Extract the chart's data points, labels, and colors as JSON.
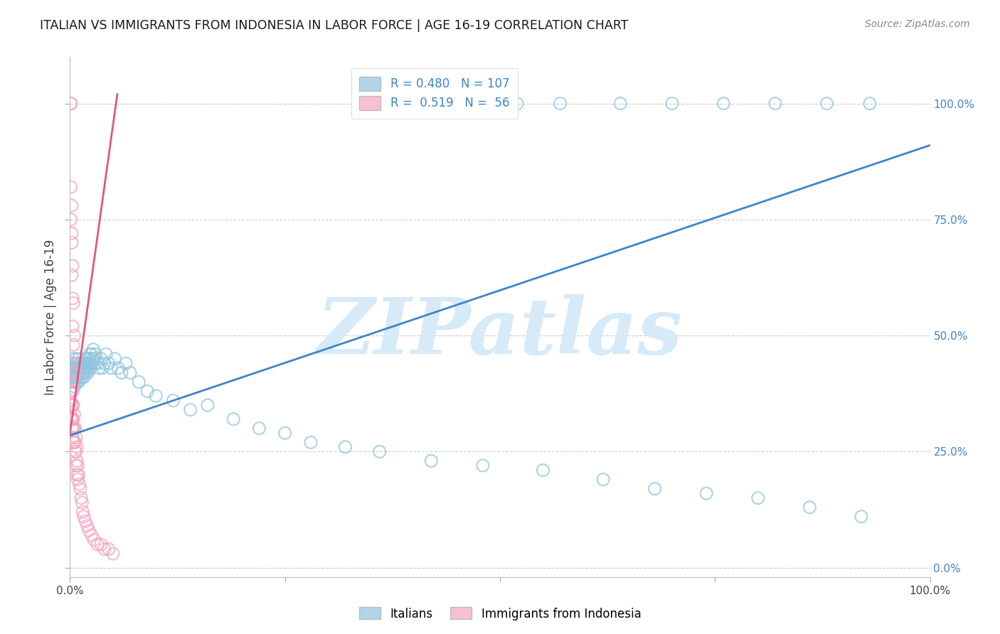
{
  "title": "ITALIAN VS IMMIGRANTS FROM INDONESIA IN LABOR FORCE | AGE 16-19 CORRELATION CHART",
  "source": "Source: ZipAtlas.com",
  "ylabel": "In Labor Force | Age 16-19",
  "watermark": "ZIPatlas",
  "blue_color": "#92c5de",
  "pink_color": "#f4a6c0",
  "blue_line_color": "#3d85c8",
  "pink_line_color": "#e05880",
  "title_color": "#1a1a1a",
  "axis_label_color": "#444444",
  "right_axis_color": "#3d85c8",
  "grid_color": "#cccccc",
  "watermark_color": "#d6eaf8",
  "blue_points_x": [
    0.002,
    0.002,
    0.003,
    0.003,
    0.004,
    0.004,
    0.004,
    0.005,
    0.005,
    0.005,
    0.006,
    0.006,
    0.006,
    0.007,
    0.007,
    0.007,
    0.008,
    0.008,
    0.008,
    0.009,
    0.009,
    0.01,
    0.01,
    0.01,
    0.01,
    0.011,
    0.011,
    0.012,
    0.012,
    0.013,
    0.013,
    0.014,
    0.014,
    0.015,
    0.015,
    0.016,
    0.016,
    0.017,
    0.017,
    0.018,
    0.018,
    0.019,
    0.019,
    0.02,
    0.02,
    0.021,
    0.021,
    0.022,
    0.022,
    0.023,
    0.023,
    0.024,
    0.025,
    0.025,
    0.026,
    0.027,
    0.028,
    0.029,
    0.03,
    0.032,
    0.034,
    0.036,
    0.038,
    0.04,
    0.042,
    0.045,
    0.048,
    0.052,
    0.056,
    0.06,
    0.065,
    0.07,
    0.08,
    0.09,
    0.1,
    0.12,
    0.14,
    0.16,
    0.19,
    0.22,
    0.25,
    0.28,
    0.32,
    0.36,
    0.42,
    0.48,
    0.55,
    0.62,
    0.68,
    0.74,
    0.8,
    0.86,
    0.92,
    0.42,
    0.48,
    0.52,
    0.57,
    0.64,
    0.7,
    0.76,
    0.82,
    0.88,
    0.93
  ],
  "blue_points_y": [
    0.43,
    0.4,
    0.45,
    0.41,
    0.44,
    0.42,
    0.4,
    0.43,
    0.41,
    0.39,
    0.44,
    0.42,
    0.4,
    0.45,
    0.43,
    0.41,
    0.44,
    0.42,
    0.4,
    0.43,
    0.41,
    0.45,
    0.43,
    0.42,
    0.4,
    0.44,
    0.42,
    0.43,
    0.41,
    0.44,
    0.42,
    0.43,
    0.41,
    0.44,
    0.42,
    0.43,
    0.41,
    0.44,
    0.42,
    0.45,
    0.43,
    0.44,
    0.42,
    0.45,
    0.43,
    0.44,
    0.42,
    0.45,
    0.43,
    0.46,
    0.44,
    0.43,
    0.46,
    0.44,
    0.45,
    0.47,
    0.45,
    0.44,
    0.46,
    0.44,
    0.43,
    0.45,
    0.43,
    0.44,
    0.46,
    0.44,
    0.43,
    0.45,
    0.43,
    0.42,
    0.44,
    0.42,
    0.4,
    0.38,
    0.37,
    0.36,
    0.34,
    0.35,
    0.32,
    0.3,
    0.29,
    0.27,
    0.26,
    0.25,
    0.23,
    0.22,
    0.21,
    0.19,
    0.17,
    0.16,
    0.15,
    0.13,
    0.11,
    1.0,
    1.0,
    1.0,
    1.0,
    1.0,
    1.0,
    1.0,
    1.0,
    1.0,
    1.0
  ],
  "pink_points_x": [
    0.001,
    0.001,
    0.001,
    0.001,
    0.001,
    0.002,
    0.002,
    0.002,
    0.002,
    0.002,
    0.003,
    0.003,
    0.003,
    0.003,
    0.003,
    0.004,
    0.004,
    0.004,
    0.004,
    0.005,
    0.005,
    0.005,
    0.006,
    0.006,
    0.006,
    0.007,
    0.007,
    0.007,
    0.008,
    0.008,
    0.008,
    0.009,
    0.009,
    0.01,
    0.011,
    0.012,
    0.013,
    0.014,
    0.015,
    0.016,
    0.018,
    0.02,
    0.022,
    0.025,
    0.028,
    0.032,
    0.036,
    0.04,
    0.045,
    0.05,
    0.001,
    0.001,
    0.002,
    0.002,
    0.003,
    0.004
  ],
  "pink_points_y": [
    0.4,
    0.38,
    0.36,
    0.34,
    0.32,
    0.4,
    0.38,
    0.35,
    0.32,
    0.3,
    0.38,
    0.35,
    0.32,
    0.3,
    0.28,
    0.35,
    0.32,
    0.3,
    0.27,
    0.33,
    0.3,
    0.27,
    0.3,
    0.27,
    0.25,
    0.28,
    0.25,
    0.22,
    0.26,
    0.23,
    0.2,
    0.22,
    0.19,
    0.2,
    0.18,
    0.17,
    0.15,
    0.14,
    0.12,
    0.11,
    0.1,
    0.09,
    0.08,
    0.07,
    0.06,
    0.05,
    0.05,
    0.04,
    0.04,
    0.03,
    1.0,
    1.0,
    0.78,
    0.72,
    0.65,
    0.57
  ],
  "pink_outliers_x": [
    0.001,
    0.001,
    0.002,
    0.002,
    0.003,
    0.003,
    0.004,
    0.005,
    0.005,
    0.006
  ],
  "pink_outliers_y": [
    0.82,
    0.75,
    0.7,
    0.63,
    0.58,
    0.52,
    0.48,
    0.44,
    0.5,
    0.42
  ],
  "blue_line_x": [
    0.0,
    1.0
  ],
  "blue_line_y": [
    0.285,
    0.91
  ],
  "pink_line_x": [
    0.0,
    0.055
  ],
  "pink_line_y": [
    0.29,
    1.02
  ],
  "xlim": [
    0.0,
    1.0
  ],
  "ylim": [
    -0.02,
    1.1
  ],
  "ytick_positions": [
    0.0,
    0.25,
    0.5,
    0.75,
    1.0
  ],
  "ytick_labels": [
    "0.0%",
    "25.0%",
    "50.0%",
    "75.0%",
    "100.0%"
  ],
  "xtick_positions": [
    0.0,
    0.25,
    0.5,
    0.75,
    1.0
  ],
  "xtick_labels_left": "0.0%",
  "xtick_labels_right": "100.0%",
  "figsize": [
    14.06,
    8.92
  ],
  "dpi": 100
}
